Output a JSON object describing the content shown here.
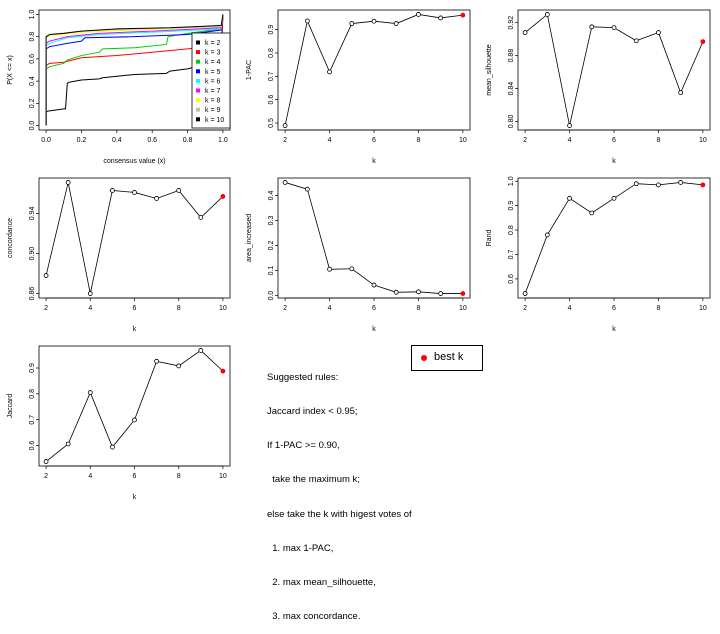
{
  "chart_data": [
    {
      "type": "line",
      "xlabel": "consensus value (x)",
      "ylabel": "P(X <= x)",
      "xlim": [
        0,
        1
      ],
      "ylim": [
        0,
        1
      ],
      "xticks": [
        "0.0",
        "0.2",
        "0.4",
        "0.6",
        "0.8",
        "1.0"
      ],
      "yticks": [
        "0.0",
        "0.2",
        "0.4",
        "0.6",
        "0.8",
        "1.0"
      ],
      "legend_position": "bottom-right",
      "series": [
        {
          "name": "k = 2",
          "color": "#000000",
          "x": [
            0,
            0,
            0.01,
            0.1,
            0.11,
            0.12,
            0.13,
            0.2,
            0.3,
            0.32,
            0.5,
            0.68,
            0.7,
            0.8,
            0.85,
            0.99,
            1
          ],
          "y": [
            0,
            0.12,
            0.13,
            0.15,
            0.15,
            0.38,
            0.39,
            0.41,
            0.42,
            0.43,
            0.46,
            0.47,
            0.49,
            0.51,
            0.53,
            0.55,
            1
          ]
        },
        {
          "name": "k = 3",
          "color": "#ff0000",
          "x": [
            0,
            0,
            0.02,
            0.1,
            0.2,
            0.4,
            0.6,
            0.8,
            0.99,
            1
          ],
          "y": [
            0,
            0.54,
            0.56,
            0.57,
            0.61,
            0.63,
            0.66,
            0.69,
            0.72,
            1
          ]
        },
        {
          "name": "k = 4",
          "color": "#00cd00",
          "x": [
            0,
            0,
            0.02,
            0.1,
            0.12,
            0.2,
            0.3,
            0.32,
            0.5,
            0.68,
            0.69,
            0.8,
            0.99,
            1
          ],
          "y": [
            0,
            0.51,
            0.53,
            0.56,
            0.59,
            0.63,
            0.66,
            0.69,
            0.7,
            0.73,
            0.8,
            0.83,
            0.87,
            1
          ]
        },
        {
          "name": "k = 5",
          "color": "#0000ff",
          "x": [
            0,
            0,
            0.02,
            0.12,
            0.2,
            0.22,
            0.5,
            0.8,
            0.99,
            1
          ],
          "y": [
            0,
            0.69,
            0.71,
            0.74,
            0.76,
            0.79,
            0.8,
            0.82,
            0.86,
            1
          ]
        },
        {
          "name": "k = 6",
          "color": "#00ffff",
          "x": [
            0,
            0,
            0.02,
            0.12,
            0.3,
            0.6,
            0.99,
            1
          ],
          "y": [
            0,
            0.72,
            0.74,
            0.79,
            0.82,
            0.84,
            0.87,
            1
          ]
        },
        {
          "name": "k = 7",
          "color": "#ff00ff",
          "x": [
            0,
            0,
            0.02,
            0.12,
            0.3,
            0.6,
            0.99,
            1
          ],
          "y": [
            0,
            0.74,
            0.76,
            0.8,
            0.83,
            0.85,
            0.88,
            1
          ]
        },
        {
          "name": "k = 8",
          "color": "#ffff00",
          "x": [
            0,
            0,
            0.02,
            0.2,
            0.5,
            0.99,
            1
          ],
          "y": [
            0,
            0.78,
            0.81,
            0.84,
            0.86,
            0.89,
            1
          ]
        },
        {
          "name": "k = 9",
          "color": "#bebebe",
          "x": [
            0,
            0,
            0.02,
            0.2,
            0.5,
            0.99,
            1
          ],
          "y": [
            0,
            0.79,
            0.82,
            0.85,
            0.87,
            0.89,
            1
          ]
        },
        {
          "name": "k = 10",
          "color": "#000000",
          "x": [
            0,
            0,
            0.02,
            0.1,
            0.2,
            0.4,
            0.7,
            0.99,
            1
          ],
          "y": [
            0,
            0.8,
            0.82,
            0.83,
            0.85,
            0.87,
            0.88,
            0.9,
            1
          ]
        }
      ]
    },
    {
      "type": "line",
      "xlabel": "k",
      "ylabel": "1-PAC",
      "x": [
        2,
        3,
        4,
        5,
        6,
        7,
        8,
        9,
        10
      ],
      "y": [
        0.489,
        0.937,
        0.719,
        0.926,
        0.936,
        0.926,
        0.965,
        0.95,
        0.962
      ],
      "xticks": [
        2,
        4,
        6,
        8,
        10
      ],
      "yticks": [
        "0.5",
        "0.6",
        "0.7",
        "0.8",
        "0.9"
      ],
      "best_k": 10,
      "best_color": "#ff0000"
    },
    {
      "type": "line",
      "xlabel": "k",
      "ylabel": "mean_silhouette",
      "x": [
        2,
        3,
        4,
        5,
        6,
        7,
        8,
        9,
        10
      ],
      "y": [
        0.908,
        0.93,
        0.795,
        0.915,
        0.914,
        0.898,
        0.908,
        0.835,
        0.897
      ],
      "xticks": [
        2,
        4,
        6,
        8,
        10
      ],
      "yticks": [
        "0.80",
        "0.84",
        "0.88",
        "0.92"
      ],
      "best_k": 10,
      "best_color": "#ff0000"
    },
    {
      "type": "line",
      "xlabel": "k",
      "ylabel": "concordance",
      "x": [
        2,
        3,
        4,
        5,
        6,
        7,
        8,
        9,
        10
      ],
      "y": [
        0.878,
        0.971,
        0.86,
        0.963,
        0.961,
        0.955,
        0.963,
        0.936,
        0.957
      ],
      "xticks": [
        2,
        4,
        6,
        8,
        10
      ],
      "yticks": [
        "0.86",
        "0.90",
        "0.94"
      ],
      "best_k": 10,
      "best_color": "#ff0000"
    },
    {
      "type": "line",
      "xlabel": "k",
      "ylabel": "area_increased",
      "x": [
        2,
        3,
        4,
        5,
        6,
        7,
        8,
        9,
        10
      ],
      "y": [
        0.452,
        0.425,
        0.105,
        0.107,
        0.042,
        0.013,
        0.015,
        0.008,
        0.008
      ],
      "xticks": [
        2,
        4,
        6,
        8,
        10
      ],
      "yticks": [
        "0.0",
        "0.1",
        "0.2",
        "0.3",
        "0.4"
      ],
      "best_k": 10,
      "best_color": "#ff0000"
    },
    {
      "type": "line",
      "xlabel": "k",
      "ylabel": "Rand",
      "x": [
        2,
        3,
        4,
        5,
        6,
        7,
        8,
        9,
        10
      ],
      "y": [
        0.54,
        0.78,
        0.93,
        0.87,
        0.93,
        0.99,
        0.985,
        0.995,
        0.985
      ],
      "xticks": [
        2,
        4,
        6,
        8,
        10
      ],
      "yticks": [
        "0.6",
        "0.7",
        "0.8",
        "0.9",
        "1.0"
      ],
      "best_k": 10,
      "best_color": "#ff0000"
    },
    {
      "type": "line",
      "xlabel": "k",
      "ylabel": "Jaccard",
      "x": [
        2,
        3,
        4,
        5,
        6,
        7,
        8,
        9,
        10
      ],
      "y": [
        0.538,
        0.606,
        0.805,
        0.594,
        0.699,
        0.926,
        0.908,
        0.968,
        0.888
      ],
      "xticks": [
        2,
        4,
        6,
        8,
        10
      ],
      "yticks": [
        "0.6",
        "0.7",
        "0.8",
        "0.9"
      ],
      "best_k": 10,
      "best_color": "#ff0000"
    }
  ],
  "rules": {
    "lines": [
      "Suggested rules:",
      "Jaccard index < 0.95;",
      "If 1-PAC >= 0.90,",
      "  take the maximum k;",
      "else take the k with higest votes of",
      "  1. max 1-PAC,",
      "  2. max mean_silhouette,",
      "  3. max concordance."
    ]
  },
  "legend": {
    "best_k_label": "best k",
    "best_k_color": "#ff0000"
  }
}
